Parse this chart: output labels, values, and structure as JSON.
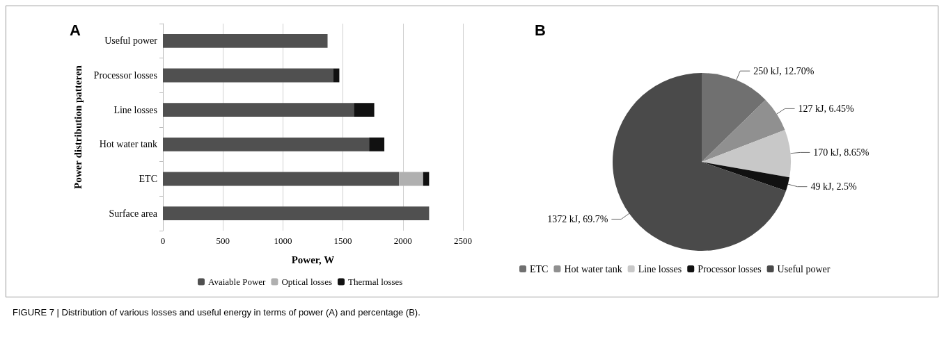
{
  "chart_data": [
    {
      "type": "bar",
      "title": "A",
      "orientation": "horizontal",
      "stacked": true,
      "xlabel": "Power, W",
      "ylabel": "Power distribution patteren",
      "categories": [
        "Useful power",
        "Processor losses",
        "Line losses",
        "Hot water tank",
        "ETC",
        "Surface area"
      ],
      "series": [
        {
          "name": "Avaiable Power",
          "color": "#505050",
          "values": [
            1372,
            1421,
            1591,
            1718,
            1968,
            2218
          ]
        },
        {
          "name": "Optical losses",
          "color": "#b0b0b0",
          "values": [
            null,
            null,
            null,
            null,
            200,
            null
          ]
        },
        {
          "name": "Thermal losses",
          "color": "#111111",
          "values": [
            null,
            49,
            170,
            127,
            50,
            null
          ]
        }
      ],
      "xlim": [
        0,
        2500
      ],
      "xticks": [
        0,
        500,
        1000,
        1500,
        2000,
        2500
      ],
      "grid": "x",
      "legend": "bottom",
      "annotations": [
        "FIGURE 7 | Distribution of various losses and useful energy in terms of power (A) and percentage (B)."
      ]
    },
    {
      "type": "pie",
      "title": "B",
      "categories": [
        "ETC",
        "Hot water tank",
        "Line losses",
        "Processor losses",
        "Useful power"
      ],
      "values": [
        250,
        127,
        170,
        49,
        1372
      ],
      "colors": [
        "#707070",
        "#909090",
        "#c8c8c8",
        "#111111",
        "#4a4a4a"
      ],
      "value_labels": [
        "250 kJ, 12.70%",
        "127 kJ, 6.45%",
        "170 kJ, 8.65%",
        "49 kJ, 2.5%",
        "1372 kJ, 69.7%"
      ],
      "legend": "bottom"
    }
  ]
}
